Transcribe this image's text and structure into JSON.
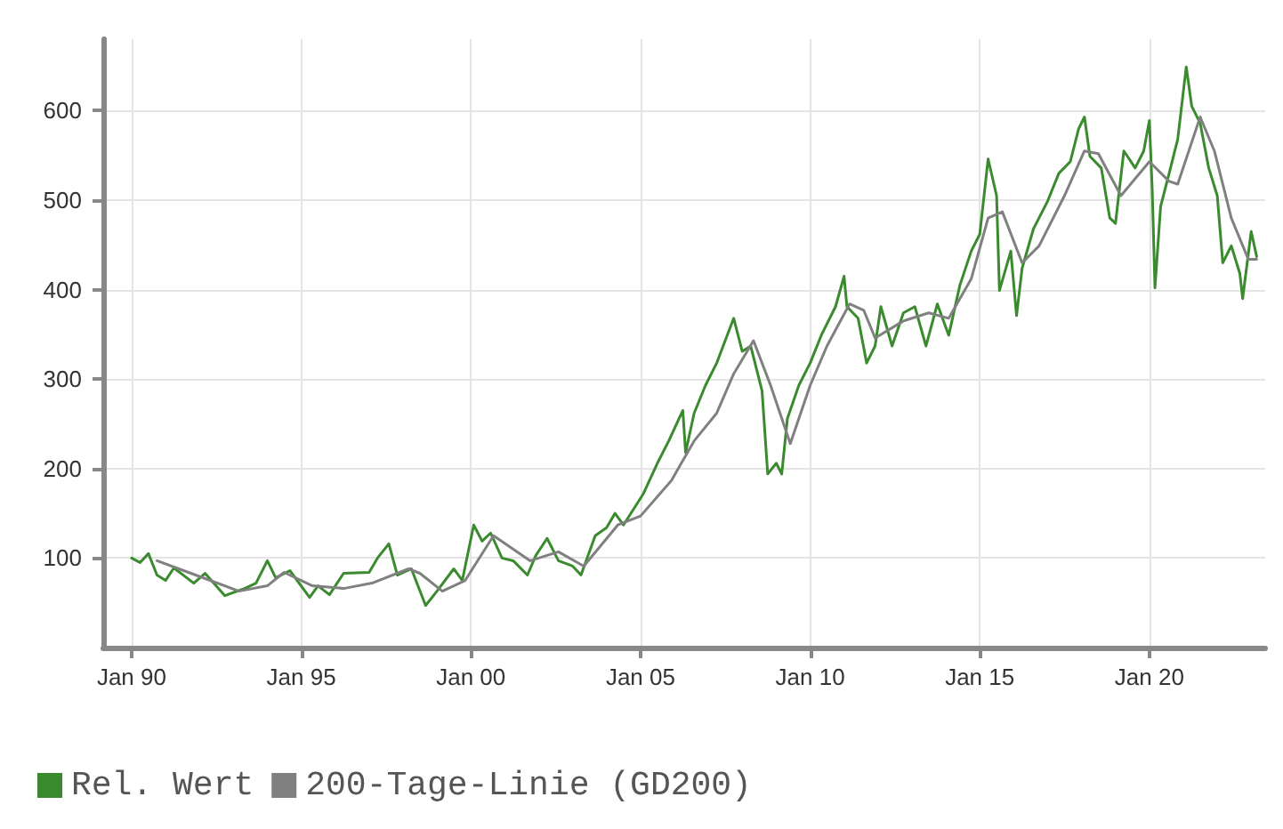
{
  "chart_data": {
    "type": "line",
    "xlim": [
      "1989-03",
      "2023-06"
    ],
    "ylim": [
      0,
      680
    ],
    "xticks": [
      {
        "value": "1990-01",
        "label": "Jan 90"
      },
      {
        "value": "1995-01",
        "label": "Jan 95"
      },
      {
        "value": "2000-01",
        "label": "Jan 00"
      },
      {
        "value": "2005-01",
        "label": "Jan 05"
      },
      {
        "value": "2010-01",
        "label": "Jan 10"
      },
      {
        "value": "2015-01",
        "label": "Jan 15"
      },
      {
        "value": "2020-01",
        "label": "Jan 20"
      }
    ],
    "yticks": [
      100,
      200,
      300,
      400,
      500,
      600
    ],
    "grid": true,
    "legend": "bottom left",
    "marker": "none",
    "line_style": "solid",
    "series": [
      {
        "name": "Rel. Wert",
        "color": "#3a8a2e",
        "x": [
          "1990-01",
          "1990-04",
          "1990-07",
          "1990-10",
          "1991-01",
          "1991-04",
          "1991-11",
          "1992-03",
          "1992-10",
          "1993-05",
          "1993-09",
          "1994-01",
          "1994-04",
          "1994-09",
          "1995-04",
          "1995-07",
          "1995-11",
          "1996-04",
          "1997-01",
          "1997-04",
          "1997-08",
          "1997-11",
          "1998-04",
          "1998-09",
          "1999-01",
          "1999-07",
          "1999-10",
          "2000-02",
          "2000-05",
          "2000-08",
          "2000-12",
          "2001-04",
          "2001-09",
          "2001-12",
          "2002-04",
          "2002-08",
          "2003-01",
          "2003-04",
          "2003-09",
          "2004-01",
          "2004-04",
          "2004-07",
          "2005-02",
          "2005-07",
          "2005-11",
          "2006-04",
          "2006-05",
          "2006-08",
          "2006-12",
          "2007-04",
          "2007-07",
          "2007-10",
          "2008-01",
          "2008-04",
          "2008-08",
          "2008-10",
          "2009-01",
          "2009-03",
          "2009-05",
          "2009-09",
          "2010-01",
          "2010-05",
          "2010-10",
          "2011-01",
          "2011-02",
          "2011-06",
          "2011-09",
          "2011-12",
          "2012-02",
          "2012-06",
          "2012-10",
          "2013-02",
          "2013-06",
          "2013-10",
          "2014-02",
          "2014-06",
          "2014-10",
          "2015-01",
          "2015-04",
          "2015-07",
          "2015-08",
          "2015-12",
          "2016-02",
          "2016-04",
          "2016-08",
          "2017-01",
          "2017-05",
          "2017-09",
          "2017-12",
          "2018-02",
          "2018-04",
          "2018-08",
          "2018-11",
          "2019-01",
          "2019-04",
          "2019-08",
          "2019-11",
          "2020-01",
          "2020-02",
          "2020-03",
          "2020-05",
          "2020-08",
          "2020-11",
          "2021-02",
          "2021-04",
          "2021-07",
          "2021-10",
          "2022-01",
          "2022-03",
          "2022-06",
          "2022-09",
          "2022-10",
          "2023-01",
          "2023-03"
        ],
        "values": [
          100,
          95,
          105,
          81,
          75,
          89,
          72,
          83,
          58,
          66,
          72,
          97,
          78,
          86,
          56,
          69,
          59,
          83,
          84,
          100,
          116,
          81,
          88,
          47,
          63,
          88,
          75,
          137,
          119,
          128,
          100,
          97,
          81,
          103,
          122,
          97,
          91,
          81,
          125,
          134,
          150,
          137,
          172,
          206,
          231,
          265,
          218,
          262,
          293,
          318,
          343,
          368,
          331,
          337,
          287,
          194,
          206,
          194,
          256,
          293,
          318,
          349,
          381,
          415,
          381,
          368,
          318,
          337,
          381,
          337,
          374,
          381,
          337,
          384,
          349,
          405,
          443,
          462,
          546,
          505,
          399,
          443,
          371,
          424,
          468,
          499,
          530,
          543,
          580,
          593,
          549,
          536,
          480,
          474,
          555,
          536,
          555,
          589,
          511,
          402,
          493,
          530,
          568,
          649,
          605,
          586,
          536,
          505,
          430,
          449,
          418,
          390,
          465,
          437
        ]
      },
      {
        "name": "200-Tage-Linie (GD200)",
        "color": "#808080",
        "x": [
          "1990-10",
          "1991-10",
          "1993-03",
          "1994-01",
          "1994-07",
          "1995-05",
          "1996-04",
          "1997-02",
          "1998-03",
          "1998-07",
          "1999-03",
          "1999-11",
          "2000-09",
          "2001-10",
          "2002-08",
          "2003-05",
          "2004-05",
          "2005-01",
          "2005-12",
          "2006-08",
          "2007-04",
          "2007-10",
          "2008-05",
          "2008-11",
          "2009-06",
          "2010-01",
          "2010-07",
          "2011-03",
          "2011-08",
          "2011-12",
          "2012-10",
          "2013-07",
          "2014-02",
          "2014-10",
          "2015-04",
          "2015-09",
          "2016-04",
          "2016-10",
          "2017-07",
          "2018-02",
          "2018-07",
          "2019-03",
          "2020-01",
          "2020-08",
          "2020-11",
          "2021-07",
          "2021-12",
          "2022-06",
          "2022-12",
          "2023-03"
        ],
        "values": [
          97,
          83,
          63,
          69,
          84,
          69,
          66,
          72,
          88,
          83,
          63,
          75,
          125,
          97,
          107,
          91,
          137,
          147,
          187,
          231,
          262,
          306,
          343,
          293,
          228,
          293,
          337,
          384,
          377,
          346,
          365,
          374,
          368,
          412,
          480,
          487,
          430,
          449,
          505,
          555,
          552,
          505,
          543,
          521,
          518,
          593,
          555,
          480,
          434,
          434
        ]
      }
    ]
  }
}
